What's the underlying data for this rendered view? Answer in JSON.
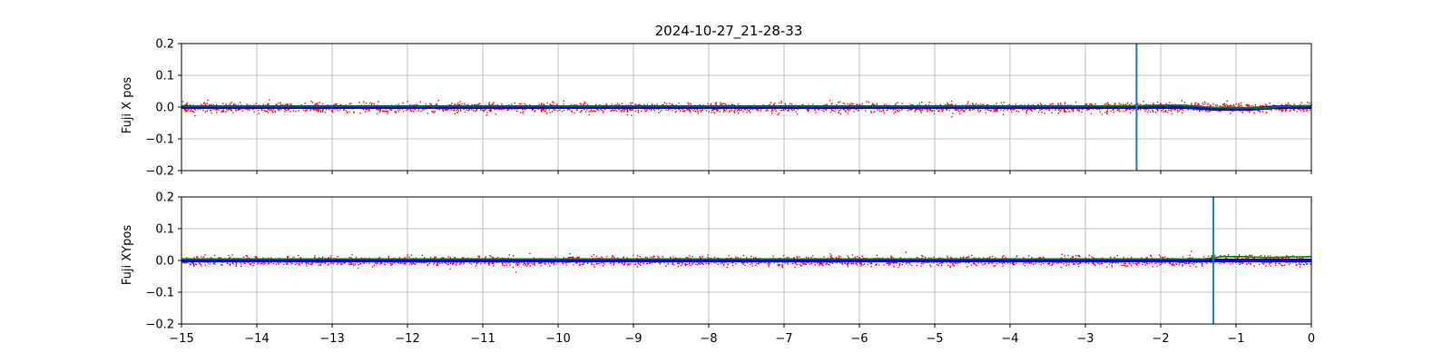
{
  "chart_data": {
    "type": "scatter",
    "title": "2024-10-27_21-28-33",
    "xlim": [
      -15,
      0
    ],
    "x_ticks": [
      -15,
      -14,
      -13,
      -12,
      -11,
      -10,
      -9,
      -8,
      -7,
      -6,
      -5,
      -4,
      -3,
      -2,
      -1,
      0
    ],
    "x_tick_labels": [
      "−15",
      "−14",
      "−13",
      "−12",
      "−11",
      "−10",
      "−9",
      "−8",
      "−7",
      "−6",
      "−5",
      "−4",
      "−3",
      "−2",
      "−1",
      "0"
    ],
    "grid": true,
    "panels": [
      {
        "ylabel": "Fuji X pos",
        "ylim": [
          -0.2,
          0.2
        ],
        "y_ticks": [
          -0.2,
          -0.1,
          0.0,
          0.1,
          0.2
        ],
        "y_tick_labels": [
          "−0.2",
          "−0.1",
          "0.0",
          "0.1",
          "0.2"
        ],
        "vline_x": -2.32,
        "series_colors": {
          "scatter": "#ff0000",
          "band": "#0000ff",
          "trend": "#008000",
          "vline": "#1f77b4"
        },
        "red_scatter": {
          "center": 0.0,
          "spread": 0.012,
          "count": 3000
        },
        "blue_band": {
          "x": [
            -15,
            -2.0,
            -1.7,
            -1.4,
            -1.3,
            -1.0,
            -0.8,
            -0.6,
            -0.4,
            0
          ],
          "y": [
            0.0,
            0.0,
            0.0,
            -0.004,
            -0.006,
            -0.006,
            -0.006,
            -0.002,
            0.0,
            0.0
          ]
        },
        "green_trend": {
          "x": [
            -15,
            -3.0,
            -2.5,
            -2.0,
            -1.7,
            -1.4,
            -1.0,
            -0.6,
            -0.3,
            0
          ],
          "y": [
            0.003,
            0.003,
            0.004,
            0.006,
            0.006,
            0.0,
            -0.003,
            -0.002,
            0.003,
            0.005
          ]
        }
      },
      {
        "ylabel": "Fuji XYpos",
        "ylim": [
          -0.2,
          0.2
        ],
        "y_ticks": [
          -0.2,
          -0.1,
          0.0,
          0.1,
          0.2
        ],
        "y_tick_labels": [
          "−0.2",
          "−0.1",
          "0.0",
          "0.1",
          "0.2"
        ],
        "vline_x": -1.3,
        "series_colors": {
          "scatter": "#ff0000",
          "band": "#0000ff",
          "trend": "#008000",
          "vline": "#1f77b4"
        },
        "red_scatter": {
          "center": 0.0,
          "spread": 0.012,
          "count": 3000
        },
        "blue_band": {
          "x": [
            -15,
            -1.5,
            -1.3,
            -1.0,
            -0.5,
            0
          ],
          "y": [
            0.0,
            0.0,
            0.0,
            0.0,
            0.0,
            0.0
          ]
        },
        "green_trend": {
          "x": [
            -15,
            -1.4,
            -1.2,
            -0.9,
            -0.6,
            -0.3,
            0
          ],
          "y": [
            0.005,
            0.005,
            0.012,
            0.012,
            0.009,
            0.011,
            0.012
          ]
        }
      }
    ]
  }
}
